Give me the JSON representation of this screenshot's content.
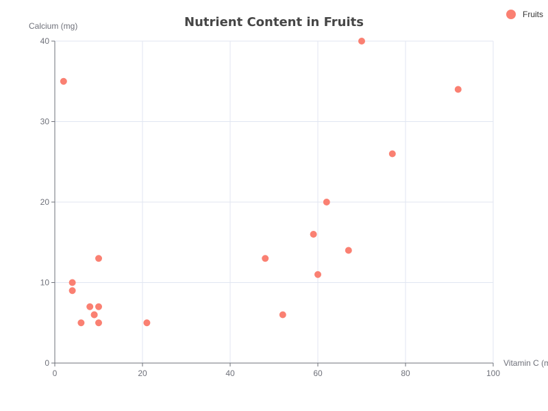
{
  "chart_data": {
    "type": "scatter",
    "title": "Nutrient Content in Fruits",
    "xlabel": "Vitamin C (mg)",
    "ylabel": "Calcium (mg)",
    "xlim": [
      0,
      100
    ],
    "ylim": [
      0,
      40
    ],
    "x_ticks": [
      "0",
      "20",
      "40",
      "60",
      "80",
      "100"
    ],
    "y_ticks": [
      "0",
      "10",
      "20",
      "30",
      "40"
    ],
    "grid": true,
    "legend_position": "top-right",
    "series": [
      {
        "name": "Fruits",
        "color": "#fa8072",
        "points": [
          {
            "x": 2,
            "y": 35
          },
          {
            "x": 70,
            "y": 40
          },
          {
            "x": 92,
            "y": 34
          },
          {
            "x": 77,
            "y": 26
          },
          {
            "x": 62,
            "y": 20
          },
          {
            "x": 59,
            "y": 16
          },
          {
            "x": 67,
            "y": 14
          },
          {
            "x": 48,
            "y": 13
          },
          {
            "x": 60,
            "y": 11
          },
          {
            "x": 52,
            "y": 6
          },
          {
            "x": 10,
            "y": 13
          },
          {
            "x": 4,
            "y": 10
          },
          {
            "x": 4,
            "y": 9
          },
          {
            "x": 8,
            "y": 7
          },
          {
            "x": 10,
            "y": 7
          },
          {
            "x": 9,
            "y": 6
          },
          {
            "x": 9,
            "y": 6
          },
          {
            "x": 6,
            "y": 5
          },
          {
            "x": 10,
            "y": 5
          },
          {
            "x": 21,
            "y": 5
          }
        ]
      }
    ]
  }
}
